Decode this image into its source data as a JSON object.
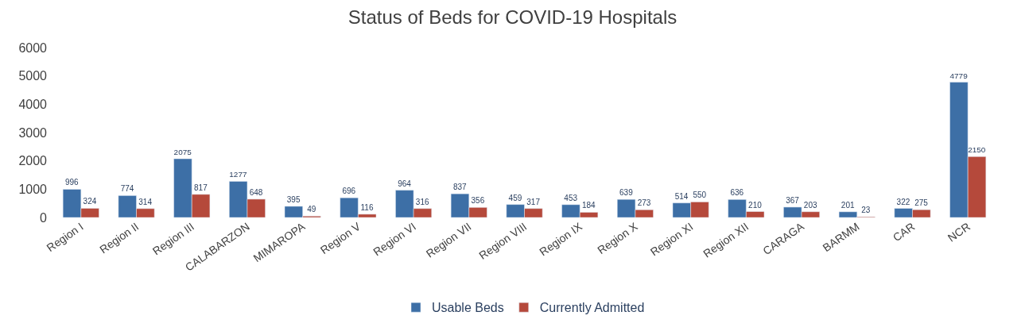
{
  "chart_data": {
    "type": "bar",
    "title": "Status of Beds for COVID-19 Hospitals",
    "categories": [
      "Region I",
      "Region II",
      "Region III",
      "CALABARZON",
      "MIMAROPA",
      "Region V",
      "Region VI",
      "Region VII",
      "Region VIII",
      "Region IX",
      "Region X",
      "Region XI",
      "Region XII",
      "CARAGA",
      "BARMM",
      "CAR",
      "NCR"
    ],
    "series": [
      {
        "name": "Usable Beds",
        "color": "#3d6fa6",
        "values": [
          996,
          774,
          2075,
          1277,
          395,
          696,
          964,
          837,
          459,
          453,
          639,
          514,
          636,
          367,
          201,
          322,
          4779
        ]
      },
      {
        "name": "Currently Admitted",
        "color": "#b5493b",
        "values": [
          324,
          314,
          817,
          648,
          49,
          116,
          316,
          356,
          317,
          184,
          273,
          550,
          210,
          203,
          23,
          275,
          2150
        ]
      }
    ],
    "ylim": [
      0,
      6000
    ],
    "yticks": [
      0,
      1000,
      2000,
      3000,
      4000,
      5000,
      6000
    ],
    "data_labels": true,
    "legend": "bottom",
    "grid": false
  }
}
